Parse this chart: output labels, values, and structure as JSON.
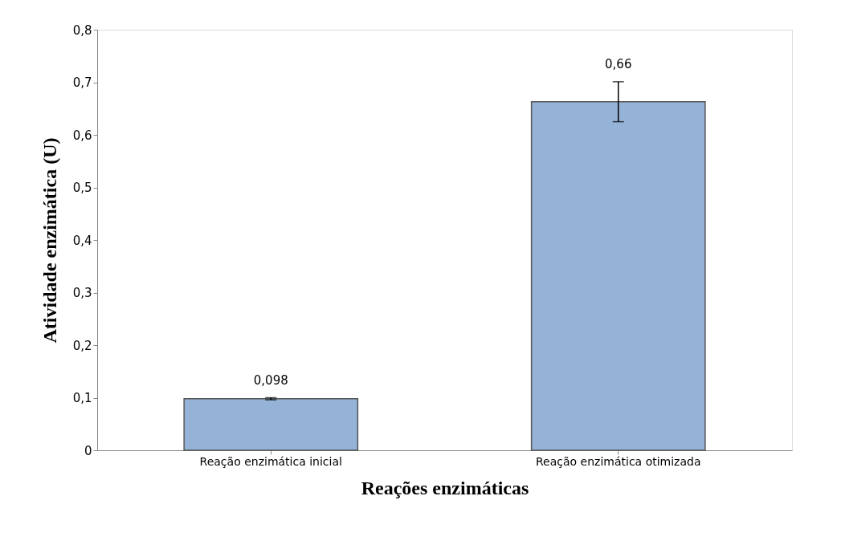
{
  "chart_data": {
    "type": "bar",
    "xlabel": "Reações enzimáticas",
    "ylabel": "Atividade enzimática (U)",
    "categories": [
      "Reação enzimática inicial",
      "Reação enzimática otimizada"
    ],
    "series": [
      {
        "color": "#95b3d7",
        "values": [
          0.098,
          0.663
        ],
        "errors": [
          0.002,
          0.038
        ],
        "value_labels": [
          "0,098",
          "0,66"
        ]
      }
    ],
    "ylim": [
      0,
      0.8
    ],
    "yticks": [
      0,
      {
        "value": 0.1,
        "label": "0,1"
      },
      {
        "value": 0.2,
        "label": "0,2"
      },
      {
        "value": 0.3,
        "label": "0,3"
      },
      {
        "value": 0.4,
        "label": "0,4"
      },
      {
        "value": 0.5,
        "label": "0,5"
      },
      {
        "value": 0.6,
        "label": "0,6"
      },
      {
        "value": 0.7,
        "label": "0,7"
      },
      {
        "value": 0.8,
        "label": "0,8"
      }
    ],
    "grid": false
  }
}
